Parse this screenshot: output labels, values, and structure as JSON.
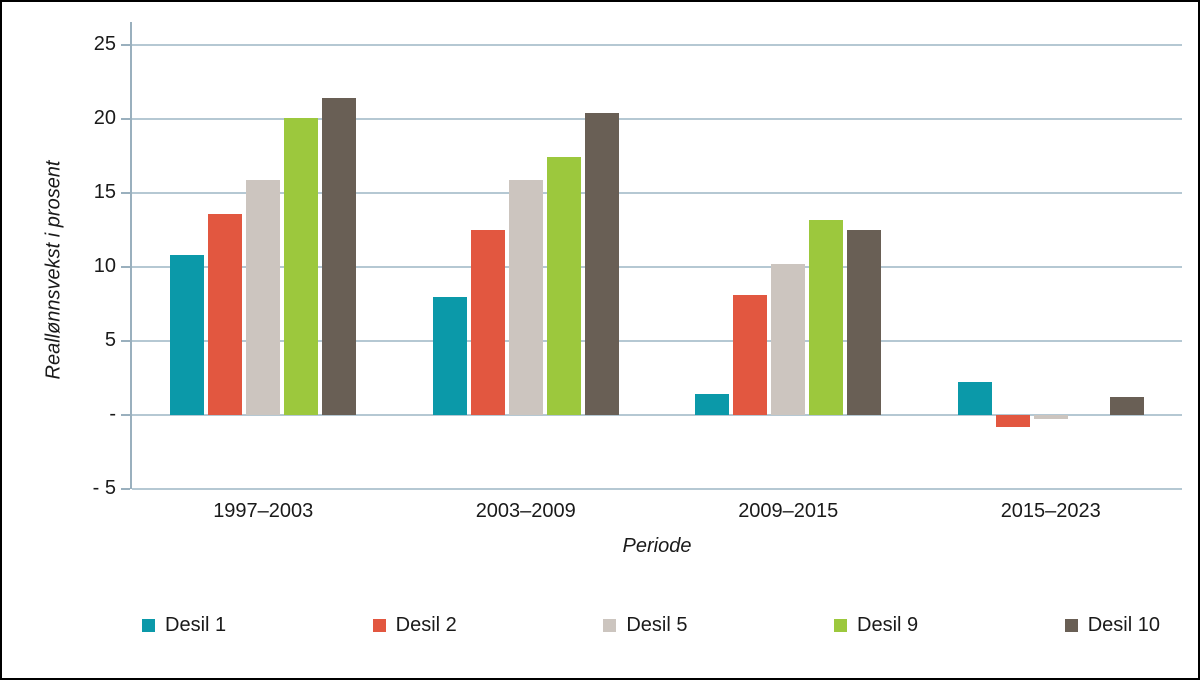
{
  "chart_data": {
    "type": "bar",
    "title": "",
    "xlabel": "Periode",
    "ylabel": "Reallønnsvekst i prosent",
    "ylim": [
      -5,
      25
    ],
    "grid": true,
    "legend_position": "bottom",
    "categories": [
      "1997–2003",
      "2003–2009",
      "2009–2015",
      "2015–2023"
    ],
    "series": [
      {
        "name": "Desil 1",
        "color": "#0b99a9",
        "values": [
          10.8,
          8.0,
          1.4,
          2.2
        ]
      },
      {
        "name": "Desil 2",
        "color": "#e25740",
        "values": [
          13.6,
          12.5,
          8.1,
          -0.8
        ]
      },
      {
        "name": "Desil 5",
        "color": "#ccc5bf",
        "values": [
          15.9,
          15.9,
          10.2,
          -0.3
        ]
      },
      {
        "name": "Desil 9",
        "color": "#9cc83d",
        "values": [
          20.1,
          17.4,
          13.2,
          0
        ]
      },
      {
        "name": "Desil 10",
        "color": "#695f55",
        "values": [
          21.4,
          20.4,
          12.5,
          1.2
        ]
      }
    ],
    "yticks": [
      {
        "value": 25,
        "label": "25"
      },
      {
        "value": 20,
        "label": "20"
      },
      {
        "value": 15,
        "label": "15"
      },
      {
        "value": 10,
        "label": "10"
      },
      {
        "value": 5,
        "label": "5"
      },
      {
        "value": 0,
        "label": "-"
      },
      {
        "value": -5,
        "label": "- 5"
      }
    ]
  },
  "colors": {
    "gridline": "#b5c8d3",
    "axis": "#9ab0be",
    "text": "#1a1a1a",
    "background": "#ffffff",
    "border": "#000000"
  }
}
